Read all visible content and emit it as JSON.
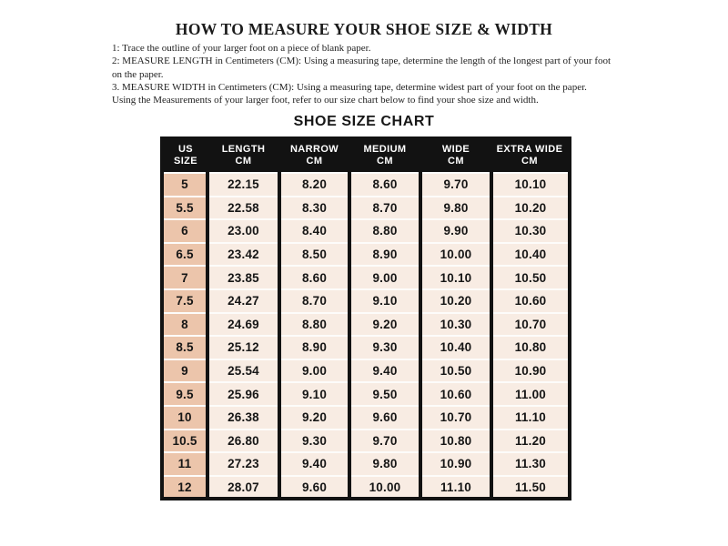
{
  "page": {
    "title": "HOW TO MEASURE YOUR SHOE SIZE & WIDTH",
    "instruction_lines": [
      "1: Trace the outline of your larger foot on a piece of blank paper.",
      "2: MEASURE LENGTH in Centimeters (CM): Using a measuring tape, determine the length of the longest part of your foot",
      "on the paper.",
      "3. MEASURE WIDTH in Centimeters (CM): Using a measuring tape, determine widest part of your foot on the paper.",
      "Using the Measurements of your larger foot, refer to our size chart below to find your shoe size and width."
    ],
    "chart_title": "SHOE SIZE CHART"
  },
  "table": {
    "columns": [
      {
        "line1": "US",
        "line2": "SIZE"
      },
      {
        "line1": "LENGTH",
        "line2": "CM"
      },
      {
        "line1": "NARROW",
        "line2": "CM"
      },
      {
        "line1": "MEDIUM",
        "line2": "CM"
      },
      {
        "line1": "WIDE",
        "line2": "CM"
      },
      {
        "line1": "EXTRA WIDE",
        "line2": "CM"
      }
    ],
    "rows": [
      [
        "5",
        "22.15",
        "8.20",
        "8.60",
        "9.70",
        "10.10"
      ],
      [
        "5.5",
        "22.58",
        "8.30",
        "8.70",
        "9.80",
        "10.20"
      ],
      [
        "6",
        "23.00",
        "8.40",
        "8.80",
        "9.90",
        "10.30"
      ],
      [
        "6.5",
        "23.42",
        "8.50",
        "8.90",
        "10.00",
        "10.40"
      ],
      [
        "7",
        "23.85",
        "8.60",
        "9.00",
        "10.10",
        "10.50"
      ],
      [
        "7.5",
        "24.27",
        "8.70",
        "9.10",
        "10.20",
        "10.60"
      ],
      [
        "8",
        "24.69",
        "8.80",
        "9.20",
        "10.30",
        "10.70"
      ],
      [
        "8.5",
        "25.12",
        "8.90",
        "9.30",
        "10.40",
        "10.80"
      ],
      [
        "9",
        "25.54",
        "9.00",
        "9.40",
        "10.50",
        "10.90"
      ],
      [
        "9.5",
        "25.96",
        "9.10",
        "9.50",
        "10.60",
        "11.00"
      ],
      [
        "10",
        "26.38",
        "9.20",
        "9.60",
        "10.70",
        "11.10"
      ],
      [
        "10.5",
        "26.80",
        "9.30",
        "9.70",
        "10.80",
        "11.20"
      ],
      [
        "11",
        "27.23",
        "9.40",
        "9.80",
        "10.90",
        "11.30"
      ],
      [
        "12",
        "28.07",
        "9.60",
        "10.00",
        "11.10",
        "11.50"
      ]
    ]
  },
  "colors": {
    "header_bg": "#121212",
    "header_text": "#ffffff",
    "frame": "#121212",
    "size_col_bg": "#ecc5ab",
    "cell_bg": "#f8ece3",
    "separator": "#fdfcfa"
  }
}
